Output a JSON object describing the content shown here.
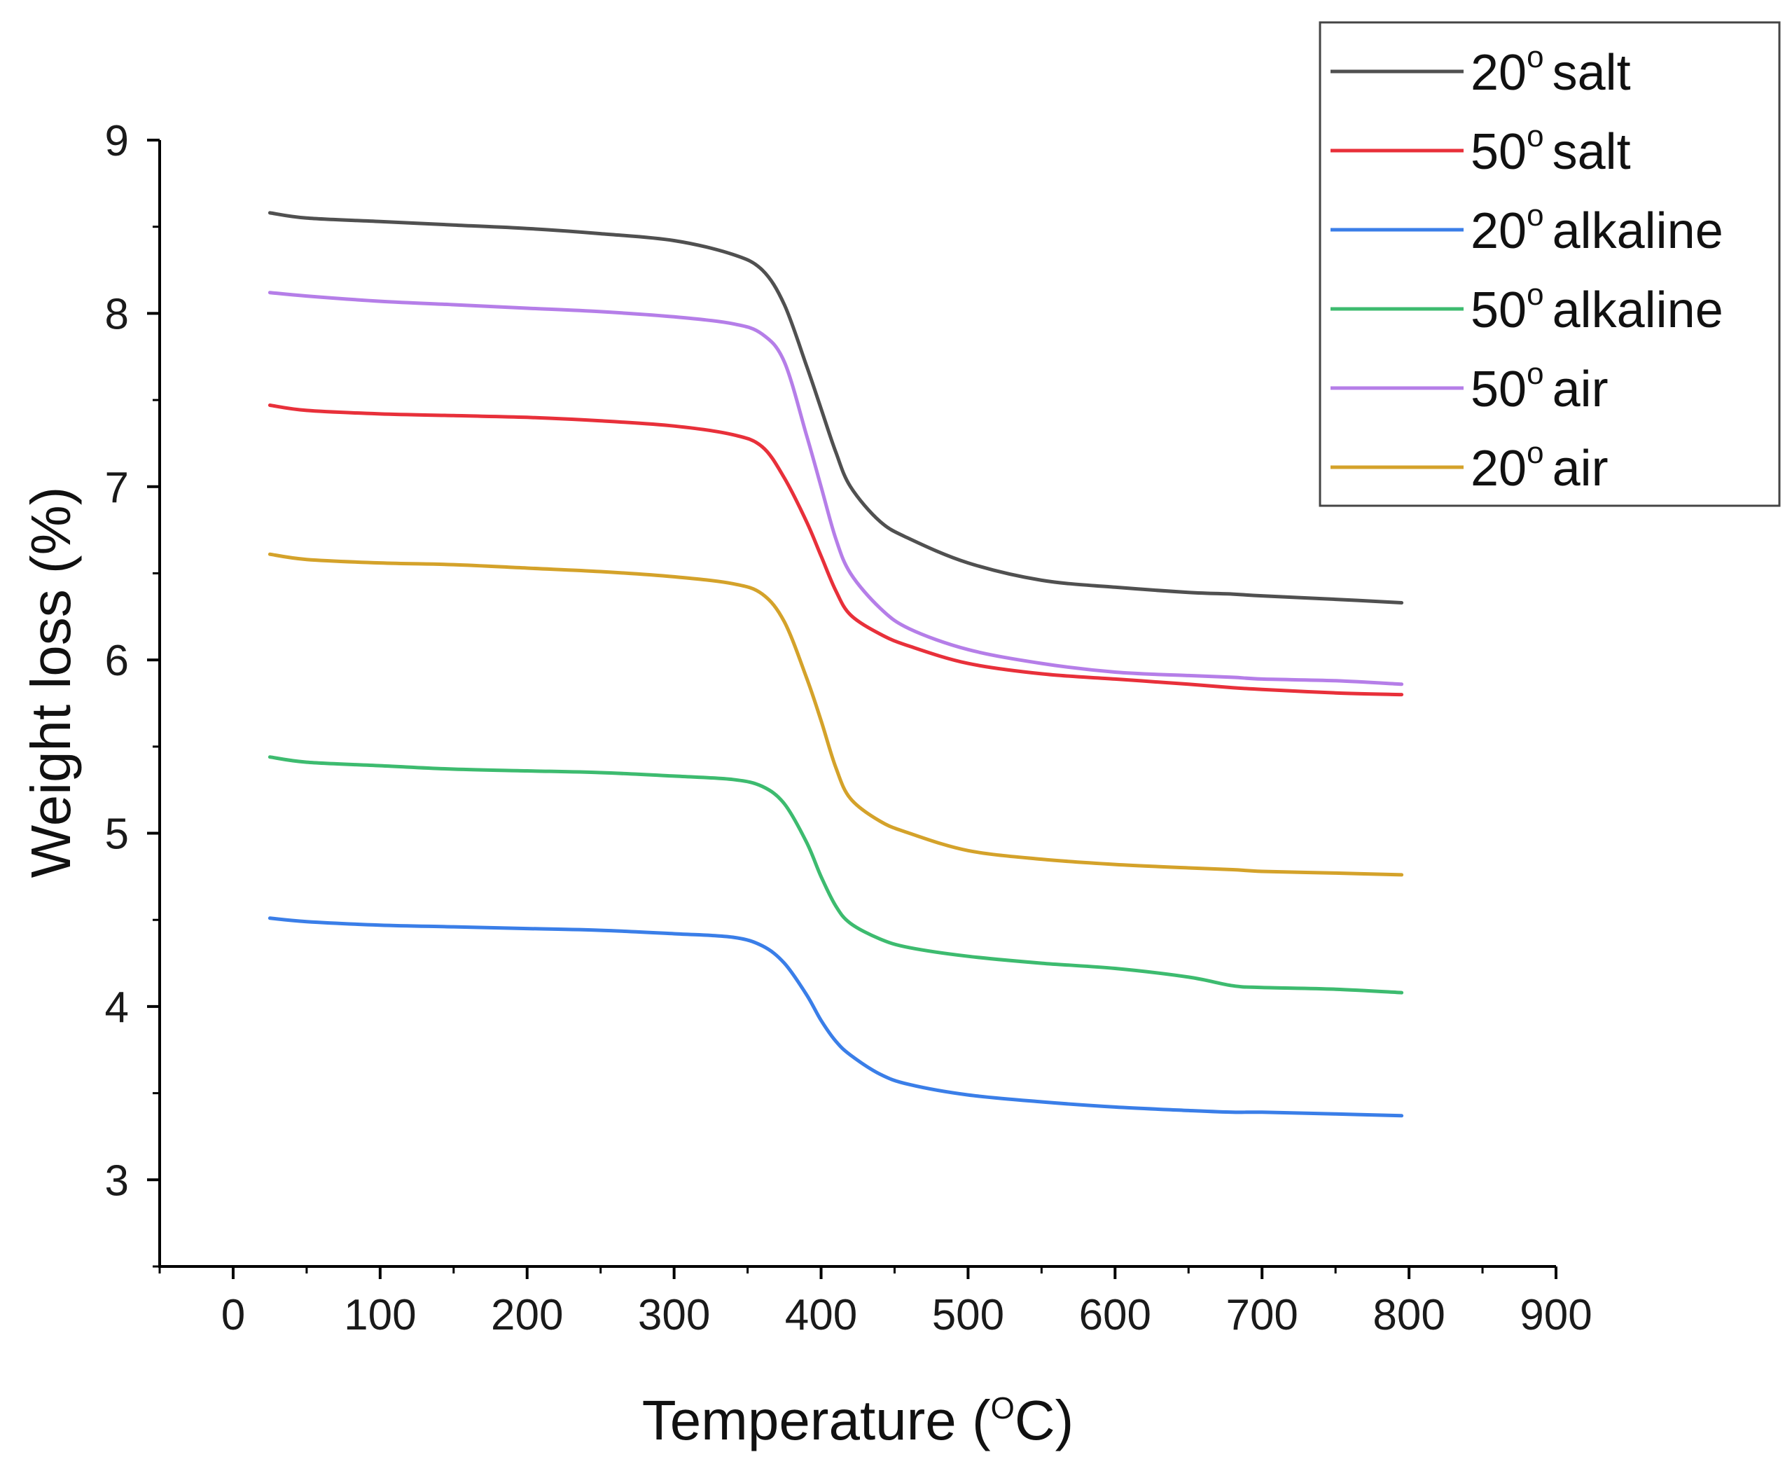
{
  "chart_data": {
    "type": "line",
    "title": "",
    "xlabel": "Temperature (",
    "xlabel_sup": "O",
    "xlabel_tail": "C)",
    "ylabel": "Weight loss (%)",
    "xlim": [
      -50,
      900
    ],
    "ylim": [
      2.5,
      9
    ],
    "x_ticks": [
      0,
      100,
      200,
      300,
      400,
      500,
      600,
      700,
      800,
      900
    ],
    "x_tick_labels": [
      "0",
      "100",
      "200",
      "300",
      "400",
      "500",
      "600",
      "700",
      "800",
      "900"
    ],
    "y_ticks": [
      3,
      4,
      5,
      6,
      7,
      8,
      9
    ],
    "y_tick_labels": [
      "3",
      "4",
      "5",
      "6",
      "7",
      "8",
      "9"
    ],
    "legend_position": "top-right",
    "x": [
      25,
      50,
      100,
      150,
      200,
      250,
      300,
      340,
      360,
      375,
      390,
      400,
      410,
      420,
      440,
      460,
      500,
      550,
      600,
      650,
      680,
      700,
      750,
      795
    ],
    "series": [
      {
        "name": "20° salt",
        "label_num": "20",
        "label_sup": "o",
        "label_rest": "salt",
        "color": "#505050",
        "values": [
          8.58,
          8.55,
          8.53,
          8.51,
          8.49,
          8.46,
          8.42,
          8.34,
          8.25,
          8.05,
          7.7,
          7.45,
          7.2,
          7.0,
          6.8,
          6.7,
          6.56,
          6.46,
          6.42,
          6.39,
          6.38,
          6.37,
          6.35,
          6.33
        ]
      },
      {
        "name": "50° salt",
        "label_num": "50",
        "label_sup": "o",
        "label_rest": "salt",
        "color": "#e8303a",
        "values": [
          7.47,
          7.44,
          7.42,
          7.41,
          7.4,
          7.38,
          7.35,
          7.3,
          7.23,
          7.05,
          6.8,
          6.6,
          6.4,
          6.26,
          6.15,
          6.08,
          5.98,
          5.92,
          5.89,
          5.86,
          5.84,
          5.83,
          5.81,
          5.8
        ]
      },
      {
        "name": "20° alkaline",
        "label_num": "20",
        "label_sup": "o",
        "label_rest": "alkaline",
        "color": "#3a7ee8",
        "values": [
          4.51,
          4.49,
          4.47,
          4.46,
          4.45,
          4.44,
          4.42,
          4.4,
          4.35,
          4.25,
          4.07,
          3.92,
          3.8,
          3.72,
          3.61,
          3.55,
          3.49,
          3.45,
          3.42,
          3.4,
          3.39,
          3.39,
          3.38,
          3.37
        ]
      },
      {
        "name": "50° alkaline",
        "label_num": "50",
        "label_sup": "o",
        "label_rest": "alkaline",
        "color": "#3dbb6f",
        "values": [
          5.44,
          5.41,
          5.39,
          5.37,
          5.36,
          5.35,
          5.33,
          5.31,
          5.27,
          5.17,
          4.95,
          4.75,
          4.58,
          4.48,
          4.39,
          4.34,
          4.29,
          4.25,
          4.22,
          4.17,
          4.12,
          4.11,
          4.1,
          4.08
        ]
      },
      {
        "name": "50° air",
        "label_num": "50",
        "label_sup": "o",
        "label_rest": "air",
        "color": "#b57ee8",
        "values": [
          8.12,
          8.1,
          8.07,
          8.05,
          8.03,
          8.01,
          7.98,
          7.94,
          7.88,
          7.72,
          7.3,
          7.0,
          6.7,
          6.5,
          6.3,
          6.18,
          6.06,
          5.98,
          5.93,
          5.91,
          5.9,
          5.89,
          5.88,
          5.86
        ]
      },
      {
        "name": "20° air",
        "label_num": "20",
        "label_sup": "o",
        "label_rest": "air",
        "color": "#d4a22a",
        "values": [
          6.61,
          6.58,
          6.56,
          6.55,
          6.53,
          6.51,
          6.48,
          6.44,
          6.38,
          6.22,
          5.9,
          5.65,
          5.38,
          5.2,
          5.07,
          5.0,
          4.9,
          4.85,
          4.82,
          4.8,
          4.79,
          4.78,
          4.77,
          4.76
        ]
      }
    ]
  }
}
